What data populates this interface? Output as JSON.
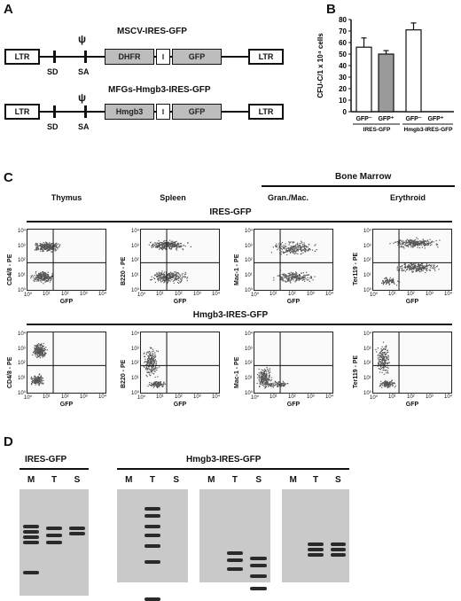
{
  "panels": {
    "a": "A",
    "b": "B",
    "c": "C",
    "d": "D"
  },
  "panel_a": {
    "construct1": {
      "title": "MSCV-IRES-GFP",
      "ltr_left": "LTR",
      "ltr_right": "LTR",
      "psi": "ψ",
      "sd": "SD",
      "sa": "SA",
      "gene": "DHFR",
      "ires": "I",
      "gfp": "GFP"
    },
    "construct2": {
      "title": "MFGs-Hmgb3-IRES-GFP",
      "ltr_left": "LTR",
      "ltr_right": "LTR",
      "psi": "ψ",
      "sd": "SD",
      "sa": "SA",
      "gene": "Hmgb3",
      "ires": "I",
      "gfp": "GFP"
    }
  },
  "chart_data": {
    "type": "bar",
    "ylabel": "CFU-C/1 x 10⁴ cells",
    "ylim": [
      0,
      80
    ],
    "yticks": [
      "0",
      "10",
      "20",
      "30",
      "40",
      "50",
      "60",
      "70",
      "80"
    ],
    "categories": [
      "GFP⁻",
      "GFP⁺",
      "GFP⁻",
      "GFP⁺"
    ],
    "values": [
      56,
      50,
      71,
      0
    ],
    "errors": [
      8,
      3,
      6,
      0
    ],
    "bar_colors": [
      "#ffffff",
      "#9a9a9a",
      "#ffffff",
      "#9a9a9a"
    ],
    "groups": [
      {
        "label": "IRES-GFP"
      },
      {
        "label": "Hmgb3-IRES-GFP"
      }
    ]
  },
  "panel_c": {
    "tissues": [
      "Thymus",
      "Spleen",
      "Gran./Mac.",
      "Erythroid"
    ],
    "bone_marrow": "Bone Marrow",
    "row1_title": "IRES-GFP",
    "row2_title": "Hmgb3-IRES-GFP",
    "ylabels": [
      "CD4/8 - PE",
      "B220 - PE",
      "Mac-1 - PE",
      "Ter119 - PE"
    ],
    "xlabel": "GFP",
    "ticks": [
      "10⁰",
      "10¹",
      "10²",
      "10³",
      "10⁴"
    ]
  },
  "panel_d": {
    "title1": "IRES-GFP",
    "title2": "Hmgb3-IRES-GFP",
    "lanes": [
      "M",
      "T",
      "S"
    ]
  }
}
